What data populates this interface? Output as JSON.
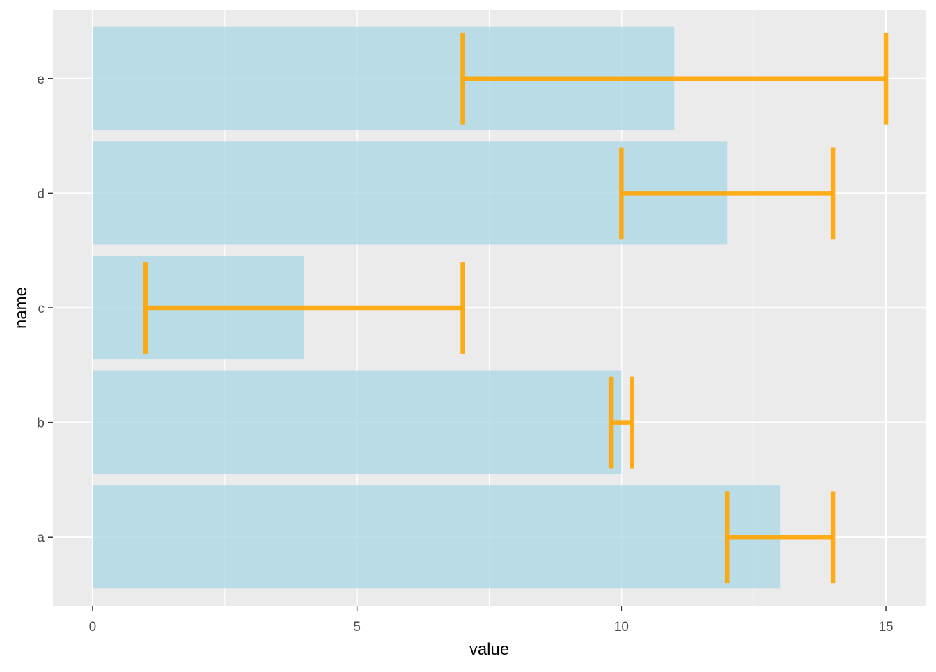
{
  "chart_data": {
    "type": "bar",
    "orientation": "horizontal",
    "categories": [
      "a",
      "b",
      "c",
      "d",
      "e"
    ],
    "values": [
      13,
      10,
      4,
      12,
      11
    ],
    "error_low": [
      12,
      9.8,
      1,
      10,
      7
    ],
    "error_high": [
      14,
      10.2,
      7,
      14,
      15
    ],
    "xlabel": "value",
    "ylabel": "name",
    "xlim": [
      -0.75,
      15.75
    ],
    "xticks": [
      0,
      5,
      10,
      15
    ],
    "xtick_labels": [
      "0",
      "5",
      "10",
      "15"
    ],
    "grid": true,
    "colors": {
      "panel": "#EBEBEB",
      "grid": "#FFFFFF",
      "bar": "#ADD8E6",
      "error_bar": "#FFA500",
      "tick_text": "#4D4D4D",
      "axis_title": "#000000"
    }
  }
}
